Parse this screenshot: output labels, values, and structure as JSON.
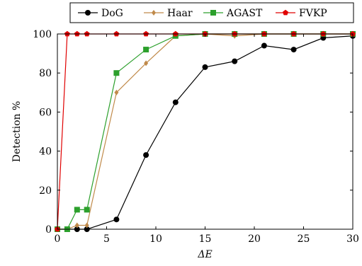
{
  "chart_data": {
    "type": "line",
    "xlabel": "ΔE",
    "ylabel": "Detection %",
    "xlim": [
      0,
      30
    ],
    "ylim": [
      0,
      100
    ],
    "xticks": [
      0,
      5,
      10,
      15,
      20,
      25,
      30
    ],
    "yticks": [
      0,
      20,
      40,
      60,
      80,
      100
    ],
    "grid": false,
    "legend_position": "top",
    "series": [
      {
        "name": "DoG",
        "color": "#000000",
        "marker": "circle",
        "x": [
          0,
          2,
          3,
          6,
          9,
          12,
          15,
          18,
          21,
          24,
          27,
          30
        ],
        "y": [
          0,
          0,
          0,
          5,
          38,
          65,
          83,
          86,
          94,
          92,
          98,
          99
        ]
      },
      {
        "name": "Haar",
        "color": "#c08a4a",
        "marker": "diamond",
        "x": [
          0,
          1,
          2,
          3,
          6,
          9,
          12,
          15,
          18,
          21,
          24,
          27,
          30
        ],
        "y": [
          0,
          0,
          2,
          2,
          70,
          85,
          99,
          100,
          99,
          100,
          100,
          100,
          100
        ]
      },
      {
        "name": "AGAST",
        "color": "#2ca02c",
        "marker": "square",
        "x": [
          0,
          1,
          2,
          3,
          6,
          9,
          12,
          15,
          18,
          21,
          24,
          27,
          30
        ],
        "y": [
          0,
          0,
          10,
          10,
          80,
          92,
          99,
          100,
          100,
          100,
          100,
          100,
          100
        ]
      },
      {
        "name": "FVKP",
        "color": "#e00000",
        "marker": "pentagon",
        "x": [
          0,
          1,
          2,
          3,
          6,
          9,
          12,
          15,
          18,
          21,
          24,
          27,
          30
        ],
        "y": [
          0,
          100,
          100,
          100,
          100,
          100,
          100,
          100,
          100,
          100,
          100,
          100,
          100
        ]
      }
    ]
  }
}
